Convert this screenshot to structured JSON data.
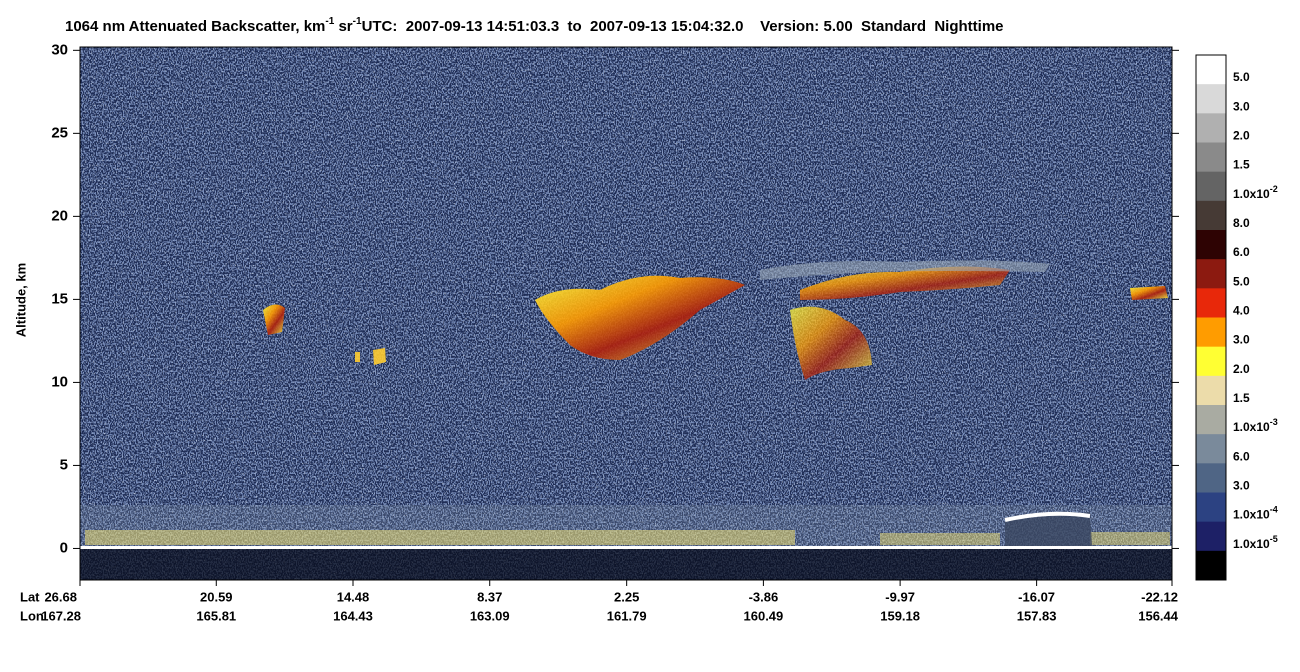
{
  "chart_data": {
    "type": "heatmap",
    "title": {
      "text": "1064 nm Attenuated Backscatter, km",
      "exp1": "-1",
      "mid": " sr",
      "exp2": "-1",
      "info": "UTC:  2007-09-13 14:51:03.3  to  2007-09-13 15:04:32.0    Version: 5.00  Standard  Nighttime"
    },
    "y_label": "Altitude, km",
    "ylim": [
      -1.9,
      30.2
    ],
    "yticks": [
      0,
      5,
      10,
      15,
      20,
      25,
      30
    ],
    "xlim": [
      26.68,
      -22.12
    ],
    "lat_label": "Lat",
    "lon_label": "Lon",
    "xticks": [
      26.68,
      20.59,
      14.48,
      8.37,
      2.25,
      -3.86,
      -9.97,
      -16.07,
      -22.12
    ],
    "lon_ticks": [
      167.28,
      165.81,
      164.43,
      163.09,
      161.79,
      160.49,
      159.18,
      157.83,
      156.44
    ],
    "colorbar": {
      "colors": [
        "#ffffff",
        "#d9d9d9",
        "#b0b0b0",
        "#8a8a8a",
        "#646464",
        "#463a35",
        "#2e0303",
        "#8c1a10",
        "#e8280a",
        "#ff9c00",
        "#ffff33",
        "#ecdcaa",
        "#a9aba2",
        "#7a8a9b",
        "#4f6585",
        "#2c4282",
        "#1d2066",
        "#000000"
      ],
      "labels": [
        {
          "text": "5.0"
        },
        {
          "text": "3.0"
        },
        {
          "text": "2.0"
        },
        {
          "text": "1.5"
        },
        {
          "text": "1.0x10",
          "exp": "-2"
        },
        {
          "text": "8.0"
        },
        {
          "text": "6.0"
        },
        {
          "text": "5.0"
        },
        {
          "text": "4.0"
        },
        {
          "text": "3.0"
        },
        {
          "text": "2.0"
        },
        {
          "text": "1.5"
        },
        {
          "text": "1.0x10",
          "exp": "-3"
        },
        {
          "text": "6.0"
        },
        {
          "text": "3.0"
        },
        {
          "text": "1.0x10",
          "exp": "-4"
        },
        {
          "text": "1.0x10",
          "exp": "-5"
        }
      ]
    }
  }
}
